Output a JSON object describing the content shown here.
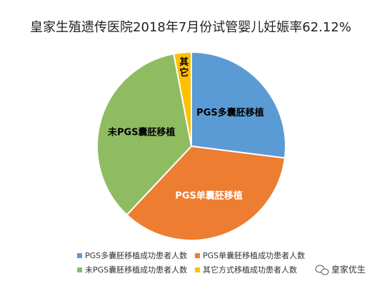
{
  "chart_data": {
    "type": "pie",
    "title": "皇家生殖遗传医院2018年7月份试管婴儿妊娠率62.12%",
    "slices": [
      {
        "label": "PGS多囊胚移植",
        "legend": "PGS多囊胚移植成功患者人数",
        "value": 27,
        "color": "#5B9BD5"
      },
      {
        "label": "PGS单囊胚移植",
        "legend": "PGS单囊胚移植成功患者人数",
        "value": 35,
        "color": "#ED7D31"
      },
      {
        "label": "未PGS囊胚移植",
        "legend": "未PGS囊胚移植成功患者人数",
        "value": 35,
        "color": "#8FBC61"
      },
      {
        "label": "其它",
        "legend": "其它方式移植成功患者人数",
        "value": 3,
        "color": "#FFC000"
      }
    ],
    "legend_position": "bottom"
  },
  "watermark": {
    "text": "皇家优生",
    "icon": "wechat-icon"
  }
}
